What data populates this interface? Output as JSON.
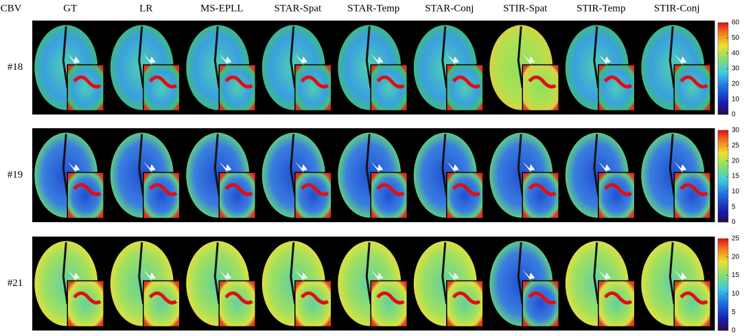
{
  "header": {
    "corner": "CBV",
    "columns": [
      "GT",
      "LR",
      "MS-EPLL",
      "STAR-Spat",
      "STAR-Temp",
      "STAR-Conj",
      "STIR-Spat",
      "STIR-Temp",
      "STIR-Conj"
    ]
  },
  "rows": [
    {
      "label": "#18",
      "colorbar_ticks": [
        0,
        10,
        20,
        30,
        40,
        50,
        60
      ]
    },
    {
      "label": "#19",
      "colorbar_ticks": [
        0,
        5,
        10,
        15,
        20,
        25,
        30
      ]
    },
    {
      "label": "#21",
      "colorbar_ticks": [
        0,
        5,
        10,
        15,
        20,
        25
      ]
    }
  ]
}
